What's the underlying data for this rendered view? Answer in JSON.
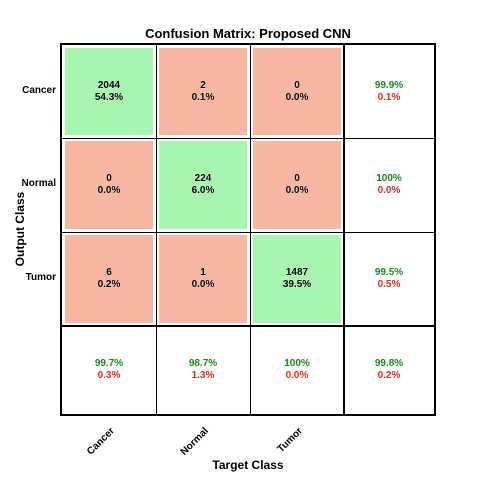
{
  "chart_data": {
    "type": "table",
    "title": "Confusion Matrix: Proposed CNN",
    "xlabel": "Target Class",
    "ylabel": "Output Class",
    "classes": [
      "Cancer",
      "Normal",
      "Tumor"
    ],
    "matrix": [
      [
        {
          "count": "2044",
          "pct": "54.3%"
        },
        {
          "count": "2",
          "pct": "0.1%"
        },
        {
          "count": "0",
          "pct": "0.0%"
        }
      ],
      [
        {
          "count": "0",
          "pct": "0.0%"
        },
        {
          "count": "224",
          "pct": "6.0%"
        },
        {
          "count": "0",
          "pct": "0.0%"
        }
      ],
      [
        {
          "count": "6",
          "pct": "0.2%"
        },
        {
          "count": "1",
          "pct": "0.0%"
        },
        {
          "count": "1487",
          "pct": "39.5%"
        }
      ]
    ],
    "row_summary": [
      {
        "correct": "99.9%",
        "error": "0.1%"
      },
      {
        "correct": "100%",
        "error": "0.0%"
      },
      {
        "correct": "99.5%",
        "error": "0.5%"
      }
    ],
    "col_summary": [
      {
        "correct": "99.7%",
        "error": "0.3%"
      },
      {
        "correct": "98.7%",
        "error": "1.3%"
      },
      {
        "correct": "100%",
        "error": "0.0%"
      }
    ],
    "overall": {
      "correct": "99.8%",
      "error": "0.2%"
    },
    "colors": {
      "diagonal": "#a8f5b0",
      "off_diagonal": "#f7b7a0",
      "correct_text": "#1b8a1b",
      "error_text": "#e52b1a"
    }
  }
}
